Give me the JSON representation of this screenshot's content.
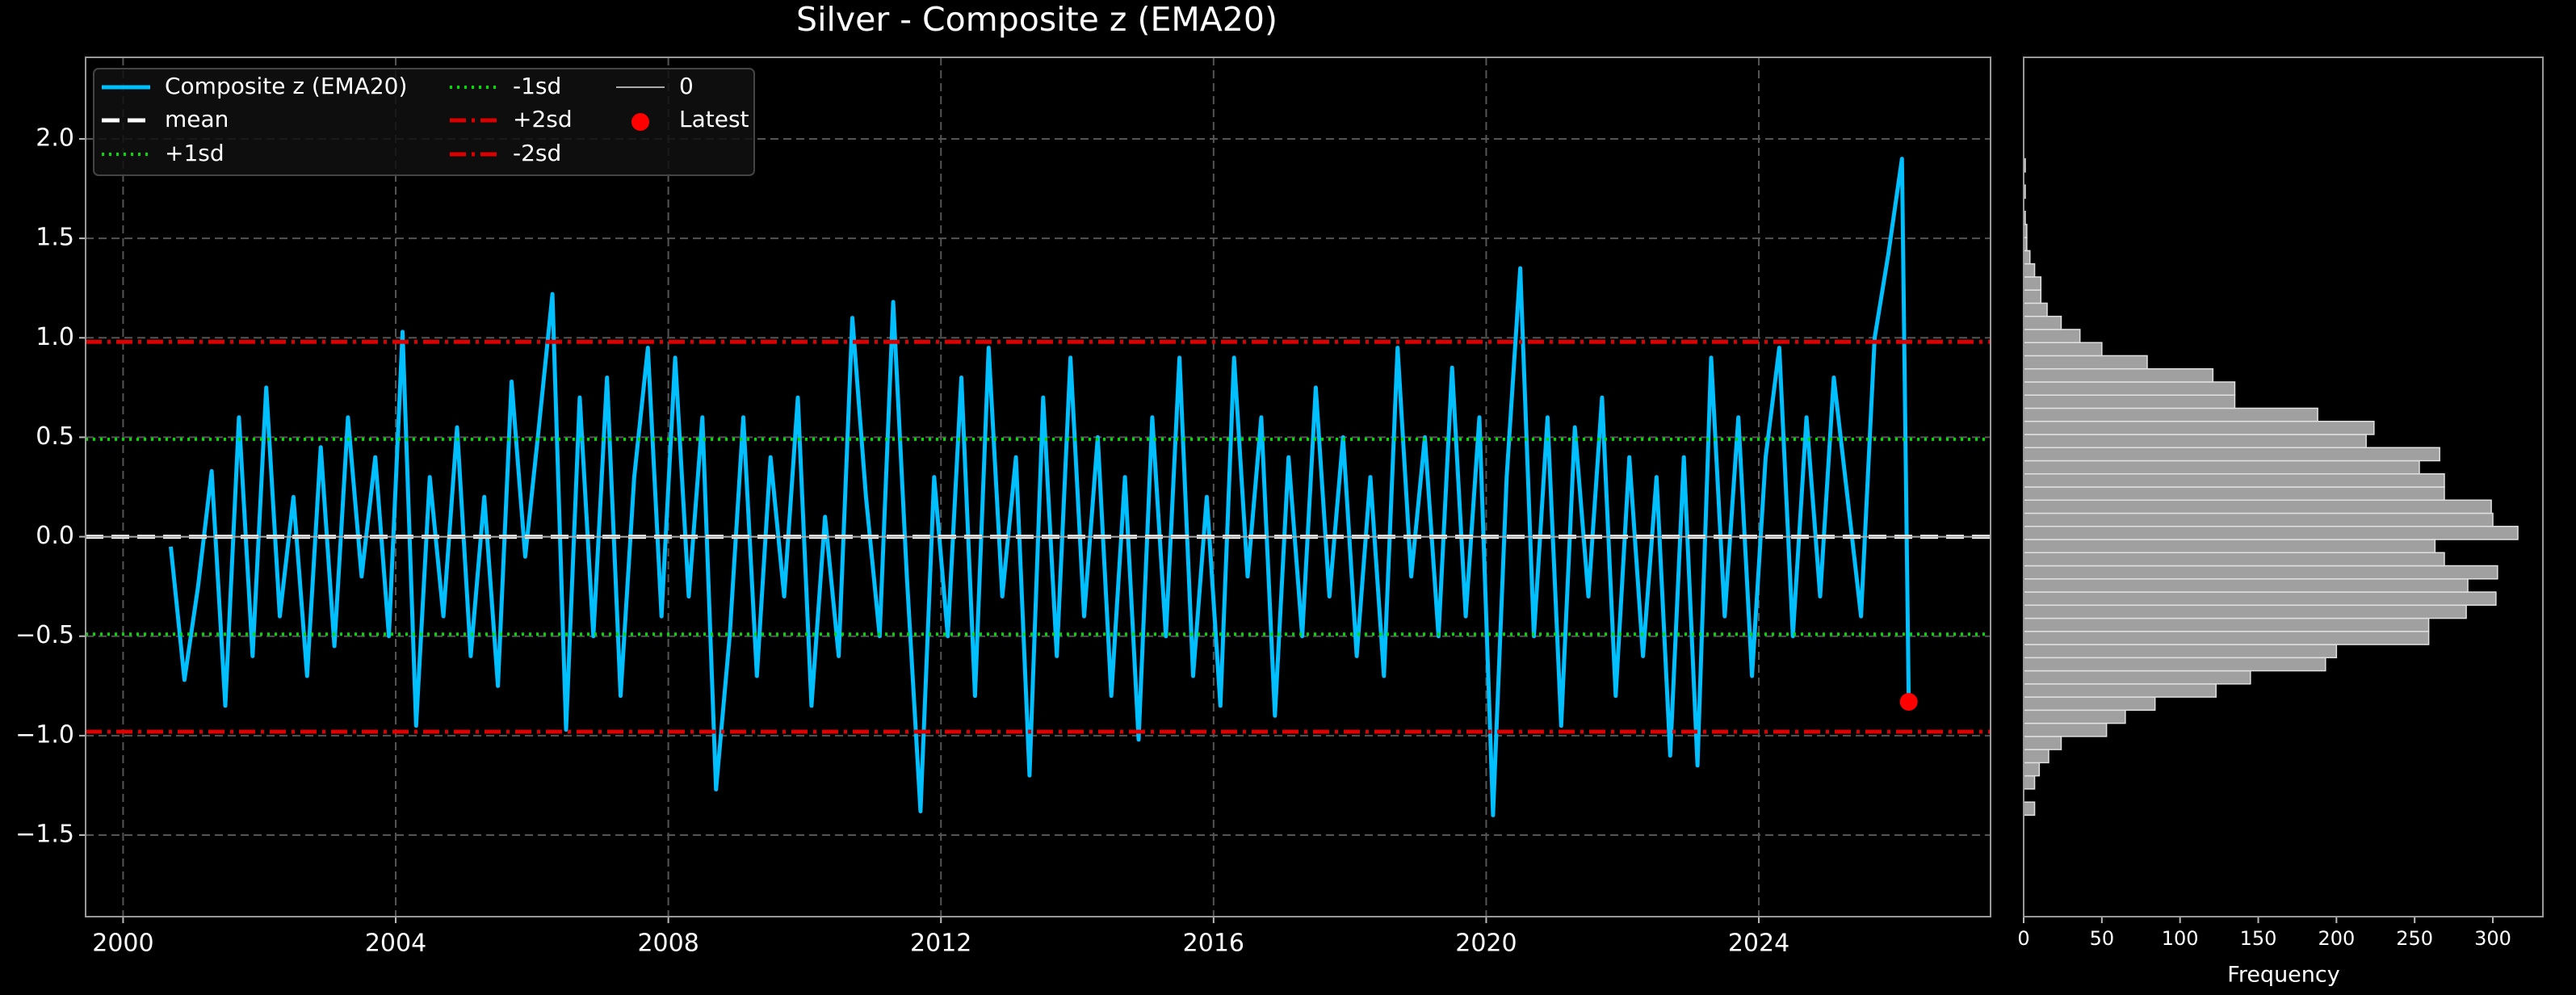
{
  "chart_data": [
    {
      "type": "line",
      "title": "Silver - Composite z (EMA20)",
      "x": [
        2000.7,
        2000.9,
        2001.1,
        2001.3,
        2001.5,
        2001.7,
        2001.9,
        2002.1,
        2002.3,
        2002.5,
        2002.7,
        2002.9,
        2003.1,
        2003.3,
        2003.5,
        2003.7,
        2003.9,
        2004.1,
        2004.3,
        2004.5,
        2004.7,
        2004.9,
        2005.1,
        2005.3,
        2005.5,
        2005.7,
        2005.9,
        2006.1,
        2006.3,
        2006.5,
        2006.7,
        2006.9,
        2007.1,
        2007.3,
        2007.5,
        2007.7,
        2007.9,
        2008.1,
        2008.3,
        2008.5,
        2008.7,
        2008.9,
        2009.1,
        2009.3,
        2009.5,
        2009.7,
        2009.9,
        2010.1,
        2010.3,
        2010.5,
        2010.7,
        2010.9,
        2011.1,
        2011.3,
        2011.5,
        2011.7,
        2011.9,
        2012.1,
        2012.3,
        2012.5,
        2012.7,
        2012.9,
        2013.1,
        2013.3,
        2013.5,
        2013.7,
        2013.9,
        2014.1,
        2014.3,
        2014.5,
        2014.7,
        2014.9,
        2015.1,
        2015.3,
        2015.5,
        2015.7,
        2015.9,
        2016.1,
        2016.3,
        2016.5,
        2016.7,
        2016.9,
        2017.1,
        2017.3,
        2017.5,
        2017.7,
        2017.9,
        2018.1,
        2018.3,
        2018.5,
        2018.7,
        2018.9,
        2019.1,
        2019.3,
        2019.5,
        2019.7,
        2019.9,
        2020.1,
        2020.3,
        2020.5,
        2020.7,
        2020.9,
        2021.1,
        2021.3,
        2021.5,
        2021.7,
        2021.9,
        2022.1,
        2022.3,
        2022.5,
        2022.7,
        2022.9,
        2023.1,
        2023.3,
        2023.5,
        2023.7,
        2023.9,
        2024.1,
        2024.3,
        2024.5,
        2024.7,
        2024.9,
        2025.1,
        2025.3,
        2025.5,
        2025.7,
        2025.9,
        2026.1,
        2026.2
      ],
      "series": [
        {
          "name": "Composite z (EMA20)",
          "color": "#00bfff",
          "values": [
            -0.05,
            -0.72,
            -0.25,
            0.33,
            -0.85,
            0.6,
            -0.6,
            0.75,
            -0.4,
            0.2,
            -0.7,
            0.45,
            -0.55,
            0.6,
            -0.2,
            0.4,
            -0.5,
            1.03,
            -0.95,
            0.3,
            -0.4,
            0.55,
            -0.6,
            0.2,
            -0.75,
            0.78,
            -0.1,
            0.55,
            1.22,
            -0.97,
            0.7,
            -0.5,
            0.8,
            -0.8,
            0.3,
            0.95,
            -0.4,
            0.9,
            -0.3,
            0.6,
            -1.27,
            -0.5,
            0.6,
            -0.7,
            0.4,
            -0.3,
            0.7,
            -0.85,
            0.1,
            -0.6,
            1.1,
            0.2,
            -0.5,
            1.18,
            -0.2,
            -1.38,
            0.3,
            -0.5,
            0.8,
            -0.8,
            0.95,
            -0.3,
            0.4,
            -1.2,
            0.7,
            -0.6,
            0.9,
            -0.4,
            0.5,
            -0.8,
            0.3,
            -1.02,
            0.6,
            -0.5,
            0.9,
            -0.7,
            0.2,
            -0.85,
            0.9,
            -0.2,
            0.6,
            -0.9,
            0.4,
            -0.5,
            0.75,
            -0.3,
            0.5,
            -0.6,
            0.3,
            -0.7,
            0.95,
            -0.2,
            0.5,
            -0.5,
            0.85,
            -0.4,
            0.6,
            -1.4,
            0.3,
            1.35,
            -0.5,
            0.6,
            -0.95,
            0.55,
            -0.3,
            0.7,
            -0.8,
            0.4,
            -0.6,
            0.3,
            -1.1,
            0.4,
            -1.15,
            0.9,
            -0.4,
            0.6,
            -0.7,
            0.4,
            0.95,
            -0.5,
            0.6,
            -0.3,
            0.8,
            0.2,
            -0.4,
            1.0,
            1.42,
            1.9,
            -0.83
          ]
        }
      ],
      "reference_lines": [
        {
          "name": "mean",
          "value": 0.0,
          "color": "#ffffff",
          "style": "dashed"
        },
        {
          "name": "+1sd",
          "value": 0.49,
          "color": "#00dd00",
          "style": "dotted"
        },
        {
          "name": "-1sd",
          "value": -0.49,
          "color": "#00dd00",
          "style": "dotted"
        },
        {
          "name": "+2sd",
          "value": 0.98,
          "color": "#dd0000",
          "style": "dashdot"
        },
        {
          "name": "-2sd",
          "value": -0.98,
          "color": "#dd0000",
          "style": "dashdot"
        },
        {
          "name": "0",
          "value": 0,
          "color": "#aaaaaa",
          "style": "solid"
        }
      ],
      "latest": {
        "name": "Latest",
        "x": 2026.2,
        "y": -0.83,
        "color": "#ff0000"
      },
      "xlim": [
        1999.45,
        2027.4
      ],
      "xticks": [
        2000,
        2004,
        2008,
        2012,
        2016,
        2020,
        2024
      ],
      "ylim": [
        -1.91,
        2.41
      ],
      "yticks": [
        {
          "value": -1.5,
          "label": "−1.5"
        },
        {
          "value": -1,
          "label": "−1.0"
        },
        {
          "value": -0.5,
          "label": "−0.5"
        },
        {
          "value": 0,
          "label": "0.0"
        },
        {
          "value": 0.5,
          "label": "0.5"
        },
        {
          "value": 1,
          "label": "1.0"
        },
        {
          "value": 1.5,
          "label": "1.5"
        },
        {
          "value": 2,
          "label": "2.0"
        }
      ],
      "grid": true,
      "legend": "upper left"
    },
    {
      "type": "histogram",
      "orientation": "horizontal",
      "xlabel": "Frequency",
      "color": "#a0a0a0",
      "bins": [
        -1.4,
        -1.334,
        -1.268,
        -1.202,
        -1.136,
        -1.07,
        -1.004,
        -0.938,
        -0.872,
        -0.806,
        -0.74,
        -0.674,
        -0.608,
        -0.542,
        -0.476,
        -0.41,
        -0.344,
        -0.278,
        -0.212,
        -0.146,
        -0.08,
        -0.014,
        0.052,
        0.118,
        0.184,
        0.25,
        0.316,
        0.382,
        0.448,
        0.514,
        0.58,
        0.646,
        0.712,
        0.778,
        0.844,
        0.91,
        0.976,
        1.042,
        1.108,
        1.174,
        1.24,
        1.306,
        1.372,
        1.438,
        1.504,
        1.57,
        1.636,
        1.702,
        1.768,
        1.834,
        1.9
      ],
      "counts": [
        7,
        0,
        7,
        10,
        16,
        24,
        53,
        65,
        84,
        123,
        145,
        193,
        200,
        259,
        259,
        283,
        302,
        284,
        303,
        269,
        263,
        316,
        300,
        299,
        269,
        269,
        253,
        266,
        219,
        224,
        188,
        135,
        135,
        121,
        79,
        50,
        36,
        24,
        15,
        11,
        11,
        7,
        4,
        2,
        2,
        1,
        0,
        1,
        0,
        1
      ],
      "xlim": [
        0,
        332
      ],
      "xticks": [
        0,
        50,
        100,
        150,
        200,
        250,
        300
      ],
      "ylim": [
        -1.91,
        2.41
      ]
    }
  ]
}
